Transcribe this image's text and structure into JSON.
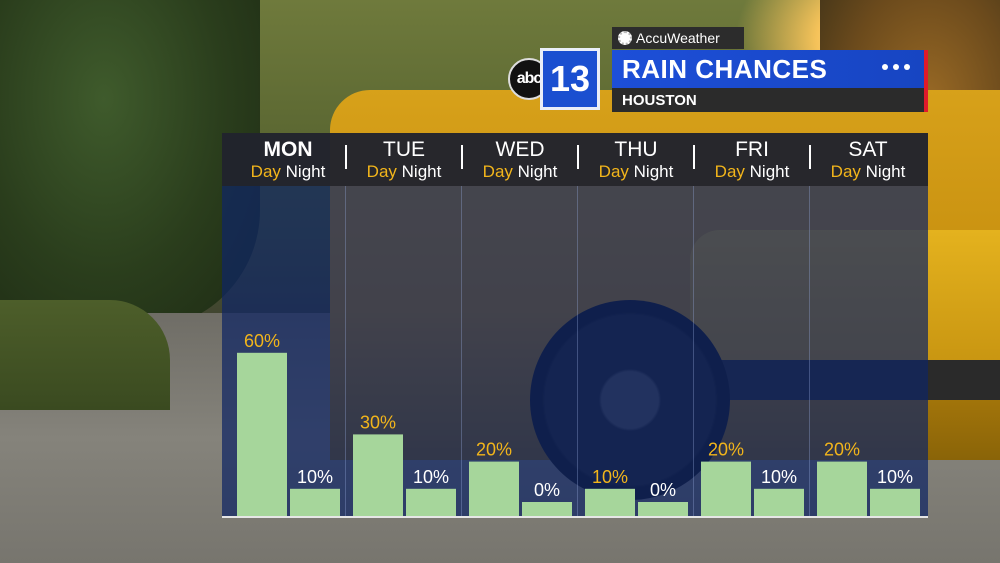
{
  "header": {
    "station_abc": "abc",
    "station_num": "13",
    "provider": "AccuWeather",
    "title": "RAIN CHANCES",
    "location": "HOUSTON"
  },
  "colors": {
    "bar": "#a6d69b",
    "day_label": "#f2b51b",
    "night_label": "#ffffff",
    "title_bar": "#1d4fd8",
    "accent": "#e01a2a"
  },
  "icons": [
    "abc-logo-icon",
    "sun-icon",
    "more-dots-icon"
  ],
  "chart_data": {
    "type": "bar",
    "categories": [
      "MON",
      "TUE",
      "WED",
      "THU",
      "FRI",
      "SAT"
    ],
    "sub_labels": [
      "Day",
      "Night"
    ],
    "series": [
      {
        "name": "Day",
        "values": [
          60,
          30,
          20,
          10,
          20,
          20
        ]
      },
      {
        "name": "Night",
        "values": [
          10,
          10,
          0,
          0,
          10,
          10
        ]
      }
    ],
    "value_suffix": "%",
    "ylim": [
      0,
      100
    ],
    "title": "RAIN CHANCES",
    "xlabel": "",
    "ylabel": ""
  }
}
